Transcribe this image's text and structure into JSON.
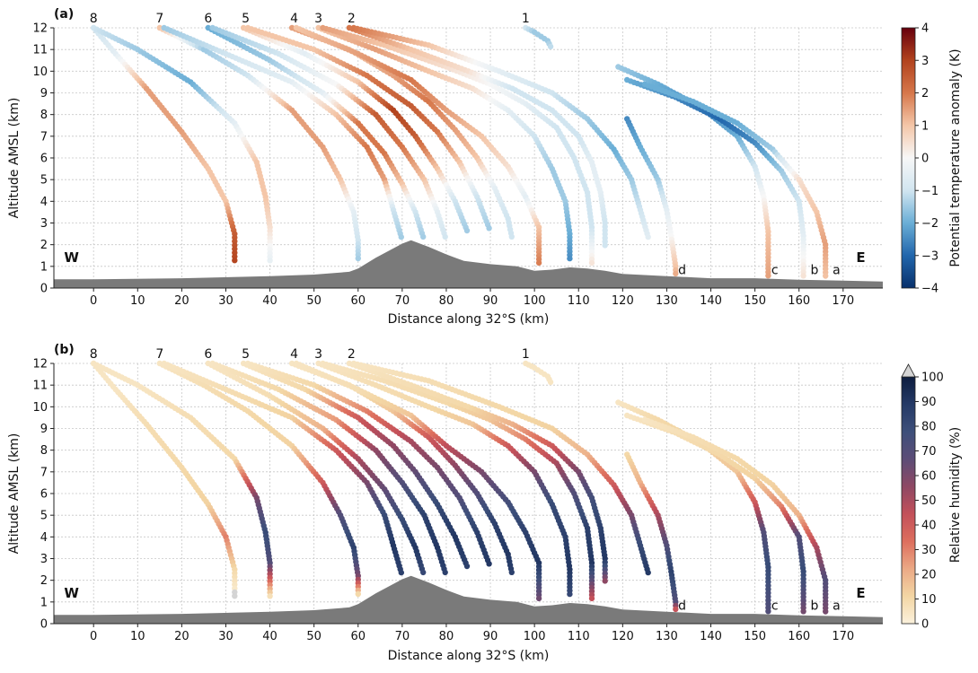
{
  "chart_data": [
    {
      "type": "scatter",
      "panel_label": "(a)",
      "xlabel": "Distance along 32°S (km)",
      "ylabel": "Altitude AMSL (km)",
      "xlim": [
        -9,
        179
      ],
      "ylim": [
        0,
        12
      ],
      "xticks": [
        "0",
        "10",
        "20",
        "30",
        "40",
        "50",
        "60",
        "70",
        "80",
        "90",
        "100",
        "110",
        "120",
        "130",
        "140",
        "150",
        "160",
        "170"
      ],
      "yticks": [
        "0",
        "1",
        "2",
        "3",
        "4",
        "5",
        "6",
        "7",
        "8",
        "9",
        "10",
        "11",
        "12"
      ],
      "grid": true,
      "side_labels": {
        "west": "W",
        "east": "E"
      },
      "colorbar": {
        "label": "Potential temperature anomaly (K)",
        "ticks": [
          "−4",
          "−3",
          "−2",
          "−1",
          "0",
          "1",
          "2",
          "3",
          "4"
        ],
        "range": [
          -4,
          4
        ],
        "colors": [
          "#08306b",
          "#2166ac",
          "#6aaed6",
          "#d1e5f0",
          "#f7f7f7",
          "#f4c6a8",
          "#d6774b",
          "#b2431e",
          "#67000d"
        ]
      },
      "launch_labels": [
        {
          "text": "8",
          "x": 0
        },
        {
          "text": "7",
          "x": 15
        },
        {
          "text": "6",
          "x": 26
        },
        {
          "text": "5",
          "x": 34.5
        },
        {
          "text": "4",
          "x": 45.5
        },
        {
          "text": "3",
          "x": 51
        },
        {
          "text": "2",
          "x": 58.5
        },
        {
          "text": "1",
          "x": 98
        }
      ],
      "station_labels": [
        {
          "text": "d",
          "x": 133.5,
          "y": 0.85
        },
        {
          "text": "c",
          "x": 154.5,
          "y": 0.85
        },
        {
          "text": "b",
          "x": 163.5,
          "y": 0.85
        },
        {
          "text": "a",
          "x": 168.5,
          "y": 0.85
        }
      ]
    },
    {
      "type": "scatter",
      "panel_label": "(b)",
      "xlabel": "Distance along 32°S (km)",
      "ylabel": "Altitude AMSL (km)",
      "xlim": [
        -9,
        179
      ],
      "ylim": [
        0,
        12
      ],
      "xticks": [
        "0",
        "10",
        "20",
        "30",
        "40",
        "50",
        "60",
        "70",
        "80",
        "90",
        "100",
        "110",
        "120",
        "130",
        "140",
        "150",
        "160",
        "170"
      ],
      "yticks": [
        "0",
        "1",
        "2",
        "3",
        "4",
        "5",
        "6",
        "7",
        "8",
        "9",
        "10",
        "11",
        "12"
      ],
      "grid": true,
      "side_labels": {
        "west": "W",
        "east": "E"
      },
      "colorbar": {
        "label": "Relative humidity (%)",
        "ticks": [
          "0",
          "10",
          "20",
          "30",
          "40",
          "50",
          "60",
          "70",
          "80",
          "90",
          "100"
        ],
        "range": [
          0,
          100
        ],
        "extend": "max",
        "colors": [
          "#fbf1dc",
          "#f3d6a4",
          "#eba985",
          "#dd6f5e",
          "#c3505a",
          "#8e4864",
          "#5c4d77",
          "#3d4f7a",
          "#253a66",
          "#0d1d3f"
        ]
      },
      "launch_labels": [
        {
          "text": "8",
          "x": 0
        },
        {
          "text": "7",
          "x": 15
        },
        {
          "text": "6",
          "x": 26
        },
        {
          "text": "5",
          "x": 34.5
        },
        {
          "text": "4",
          "x": 45.5
        },
        {
          "text": "3",
          "x": 51
        },
        {
          "text": "2",
          "x": 58.5
        },
        {
          "text": "1",
          "x": 98
        }
      ],
      "station_labels": [
        {
          "text": "d",
          "x": 133.5,
          "y": 0.85
        },
        {
          "text": "c",
          "x": 154.5,
          "y": 0.85
        },
        {
          "text": "b",
          "x": 163.5,
          "y": 0.85
        },
        {
          "text": "a",
          "x": 168.5,
          "y": 0.85
        }
      ]
    }
  ],
  "terrain": {
    "x": [
      -9,
      0,
      20,
      40,
      50,
      58,
      60,
      64,
      70,
      72,
      76,
      80,
      84,
      90,
      96,
      100,
      104,
      108,
      112,
      116,
      120,
      130,
      140,
      150,
      160,
      170,
      179
    ],
    "y": [
      0.4,
      0.4,
      0.45,
      0.55,
      0.62,
      0.75,
      0.9,
      1.4,
      2.05,
      2.2,
      1.9,
      1.55,
      1.25,
      1.1,
      1.0,
      0.8,
      0.85,
      0.95,
      0.9,
      0.8,
      0.65,
      0.55,
      0.45,
      0.45,
      0.38,
      0.34,
      0.3
    ]
  },
  "trajectories": [
    {
      "id": "8a",
      "points": [
        [
          0,
          12
        ],
        [
          5,
          10.8
        ],
        [
          12,
          9.2
        ],
        [
          20,
          7.2
        ],
        [
          26,
          5.5
        ],
        [
          30,
          4.0
        ],
        [
          32,
          2.5
        ],
        [
          32,
          1.1
        ]
      ],
      "temp": [
        -1,
        -0.5,
        1.5,
        1.5,
        1,
        1,
        2.5,
        3
      ],
      "rh": [
        5,
        5,
        8,
        10,
        12,
        30,
        10,
        0
      ]
    },
    {
      "id": "8b",
      "points": [
        [
          0,
          12
        ],
        [
          10,
          11
        ],
        [
          22,
          9.5
        ],
        [
          32,
          7.6
        ],
        [
          37,
          5.8
        ],
        [
          39,
          4.2
        ],
        [
          40,
          2.8
        ],
        [
          40,
          1.1
        ]
      ],
      "temp": [
        -1,
        -1.5,
        -2,
        -0.5,
        1,
        1,
        0.5,
        -0.5
      ],
      "rh": [
        5,
        5,
        8,
        10,
        60,
        80,
        70,
        0
      ]
    },
    {
      "id": "7a",
      "points": [
        [
          15,
          12
        ],
        [
          25,
          11
        ],
        [
          35,
          9.8
        ],
        [
          45,
          8.2
        ],
        [
          52,
          6.5
        ],
        [
          56,
          5.0
        ],
        [
          59,
          3.5
        ],
        [
          60,
          2.2
        ],
        [
          60,
          1.2
        ]
      ],
      "temp": [
        1,
        -1.5,
        -1,
        1.5,
        1.5,
        1,
        -0.5,
        -1,
        -1.5
      ],
      "rh": [
        5,
        8,
        10,
        12,
        40,
        70,
        85,
        60,
        0
      ]
    },
    {
      "id": "7b",
      "points": [
        [
          16,
          12
        ],
        [
          30,
          10.8
        ],
        [
          45,
          9.5
        ],
        [
          55,
          8.0
        ],
        [
          62,
          6.5
        ],
        [
          66,
          5.0
        ],
        [
          68,
          3.6
        ],
        [
          70,
          2.2
        ]
      ],
      "temp": [
        -1.5,
        -1,
        -0.5,
        1,
        2,
        1.5,
        -1,
        -1.5
      ],
      "rh": [
        5,
        8,
        12,
        40,
        60,
        80,
        90,
        85
      ]
    },
    {
      "id": "6a",
      "points": [
        [
          26,
          12
        ],
        [
          40,
          10.5
        ],
        [
          52,
          9.0
        ],
        [
          60,
          7.6
        ],
        [
          66,
          6.2
        ],
        [
          70,
          4.8
        ],
        [
          73,
          3.5
        ],
        [
          75,
          2.2
        ]
      ],
      "temp": [
        -2,
        -1.5,
        -0.5,
        2,
        2,
        1,
        -1,
        -1.5
      ],
      "rh": [
        5,
        8,
        20,
        50,
        65,
        80,
        90,
        80
      ]
    },
    {
      "id": "6b",
      "points": [
        [
          27,
          12
        ],
        [
          42,
          10.8
        ],
        [
          55,
          9.4
        ],
        [
          64,
          8.0
        ],
        [
          70,
          6.5
        ],
        [
          75,
          5.0
        ],
        [
          78,
          3.5
        ],
        [
          80,
          2.2
        ]
      ],
      "temp": [
        -1.5,
        -1,
        0,
        2.5,
        2,
        1,
        -0.5,
        -1
      ],
      "rh": [
        5,
        10,
        25,
        55,
        70,
        85,
        90,
        85
      ]
    },
    {
      "id": "5a",
      "points": [
        [
          34,
          12
        ],
        [
          48,
          10.8
        ],
        [
          60,
          9.5
        ],
        [
          68,
          8.2
        ],
        [
          73,
          7.0
        ],
        [
          78,
          5.5
        ],
        [
          82,
          4.0
        ],
        [
          85,
          2.5
        ]
      ],
      "temp": [
        1,
        -0.5,
        1,
        3,
        2.5,
        1,
        -1,
        -1.5
      ],
      "rh": [
        5,
        10,
        40,
        55,
        65,
        80,
        90,
        85
      ]
    },
    {
      "id": "5b",
      "points": [
        [
          35,
          12
        ],
        [
          50,
          11
        ],
        [
          62,
          9.8
        ],
        [
          72,
          8.4
        ],
        [
          78,
          7.2
        ],
        [
          83,
          5.8
        ],
        [
          87,
          4.2
        ],
        [
          90,
          2.6
        ]
      ],
      "temp": [
        1,
        1,
        2,
        2.5,
        2,
        1,
        -1,
        -1.5
      ],
      "rh": [
        5,
        10,
        30,
        50,
        60,
        70,
        85,
        90
      ]
    },
    {
      "id": "4a",
      "points": [
        [
          45,
          12
        ],
        [
          58,
          11
        ],
        [
          68,
          9.8
        ],
        [
          76,
          8.6
        ],
        [
          82,
          7.3
        ],
        [
          87,
          6.0
        ],
        [
          91,
          4.6
        ],
        [
          94,
          3.2
        ],
        [
          95,
          2.2
        ]
      ],
      "temp": [
        1.5,
        1,
        1.5,
        2,
        1.5,
        1,
        -0.5,
        -1,
        -1
      ],
      "rh": [
        5,
        8,
        15,
        40,
        55,
        70,
        85,
        90,
        85
      ]
    },
    {
      "id": "4b",
      "points": [
        [
          46,
          12
        ],
        [
          60,
          10.8
        ],
        [
          72,
          9.6
        ],
        [
          80,
          8.2
        ],
        [
          88,
          7.0
        ],
        [
          94,
          5.6
        ],
        [
          98,
          4.2
        ],
        [
          101,
          2.8
        ],
        [
          101,
          1.0
        ]
      ],
      "temp": [
        1,
        1.5,
        2,
        1.5,
        1,
        0.5,
        -0.5,
        1,
        2
      ],
      "rh": [
        5,
        8,
        15,
        45,
        60,
        75,
        85,
        90,
        60
      ]
    },
    {
      "id": "3a",
      "points": [
        [
          51,
          12
        ],
        [
          64,
          11
        ],
        [
          76,
          10
        ],
        [
          86,
          9.2
        ],
        [
          94,
          8.2
        ],
        [
          100,
          7.0
        ],
        [
          104,
          5.5
        ],
        [
          107,
          4.0
        ],
        [
          108,
          2.5
        ],
        [
          108,
          1.2
        ]
      ],
      "temp": [
        1,
        1.5,
        1,
        0.5,
        -0.5,
        -1,
        -1.5,
        -1.5,
        -2,
        -2.5
      ],
      "rh": [
        5,
        8,
        10,
        15,
        40,
        60,
        80,
        85,
        90,
        80
      ]
    },
    {
      "id": "3b",
      "points": [
        [
          52,
          12
        ],
        [
          66,
          11.2
        ],
        [
          80,
          10.2
        ],
        [
          90,
          9.4
        ],
        [
          98,
          8.5
        ],
        [
          105,
          7.4
        ],
        [
          109,
          6.0
        ],
        [
          112,
          4.4
        ],
        [
          113,
          2.8
        ],
        [
          113,
          1.0
        ]
      ],
      "temp": [
        1.5,
        1,
        0.5,
        0,
        -0.5,
        -1,
        -1,
        -1,
        -1,
        0.5
      ],
      "rh": [
        5,
        8,
        10,
        15,
        30,
        50,
        70,
        85,
        90,
        40
      ]
    },
    {
      "id": "2a",
      "points": [
        [
          58,
          12
        ],
        [
          72,
          11
        ],
        [
          85,
          10
        ],
        [
          95,
          9.2
        ],
        [
          104,
          8.2
        ],
        [
          110,
          7.0
        ],
        [
          113,
          5.8
        ],
        [
          115,
          4.4
        ],
        [
          116,
          3.0
        ],
        [
          116,
          1.8
        ]
      ],
      "temp": [
        2,
        1,
        0.5,
        -1,
        -1,
        -1,
        -0.5,
        -0.5,
        -1,
        -1
      ],
      "rh": [
        5,
        8,
        10,
        20,
        40,
        60,
        75,
        85,
        90,
        50
      ]
    },
    {
      "id": "2b",
      "points": [
        [
          59,
          12
        ],
        [
          76,
          11.2
        ],
        [
          92,
          10.0
        ],
        [
          104,
          9.0
        ],
        [
          112,
          7.8
        ],
        [
          118,
          6.4
        ],
        [
          122,
          5.0
        ],
        [
          124,
          3.6
        ],
        [
          126,
          2.2
        ]
      ],
      "temp": [
        2,
        1,
        -0.5,
        -1,
        -1.5,
        -2,
        -1.5,
        -1,
        -0.5
      ],
      "rh": [
        5,
        8,
        10,
        12,
        20,
        40,
        60,
        80,
        90
      ]
    },
    {
      "id": "1a",
      "points": [
        [
          98,
          12
        ],
        [
          100,
          11.8
        ],
        [
          103,
          11.4
        ],
        [
          104,
          11.0
        ]
      ],
      "temp": [
        -1,
        -1.5,
        -1.5,
        -1
      ],
      "rh": [
        5,
        5,
        5,
        5
      ]
    },
    {
      "id": "d1",
      "points": [
        [
          121,
          7.8
        ],
        [
          124,
          6.5
        ],
        [
          128,
          5.0
        ],
        [
          130,
          3.6
        ],
        [
          131,
          2.4
        ],
        [
          132,
          1.0
        ],
        [
          132,
          0.5
        ]
      ],
      "temp": [
        -2.5,
        -2,
        -1.5,
        -0.5,
        0,
        1,
        1.5
      ],
      "rh": [
        10,
        20,
        50,
        70,
        85,
        70,
        30
      ]
    },
    {
      "id": "c1",
      "points": [
        [
          119,
          10.2
        ],
        [
          128,
          9.4
        ],
        [
          138,
          8.3
        ],
        [
          146,
          7.0
        ],
        [
          150,
          5.6
        ],
        [
          152,
          4.2
        ],
        [
          153,
          2.6
        ],
        [
          153,
          0.4
        ]
      ],
      "temp": [
        -1.5,
        -2,
        -2.5,
        -2,
        -1,
        0,
        1,
        1.5
      ],
      "rh": [
        5,
        10,
        12,
        15,
        40,
        70,
        80,
        70
      ]
    },
    {
      "id": "b1",
      "points": [
        [
          121,
          9.6
        ],
        [
          132,
          8.8
        ],
        [
          142,
          7.8
        ],
        [
          150,
          6.7
        ],
        [
          156,
          5.4
        ],
        [
          160,
          4.0
        ],
        [
          161,
          2.4
        ],
        [
          161,
          0.4
        ]
      ],
      "temp": [
        -2,
        -2.5,
        -3,
        -2.5,
        -1.5,
        -1,
        -0.5,
        0.5
      ],
      "rh": [
        5,
        8,
        10,
        12,
        30,
        70,
        80,
        60
      ]
    },
    {
      "id": "a1",
      "points": [
        [
          125,
          9.4
        ],
        [
          136,
          8.6
        ],
        [
          146,
          7.6
        ],
        [
          154,
          6.4
        ],
        [
          160,
          5.0
        ],
        [
          164,
          3.5
        ],
        [
          166,
          2.0
        ],
        [
          166,
          0.4
        ]
      ],
      "temp": [
        -2,
        -2,
        -2,
        -1.5,
        0.5,
        1,
        1.5,
        1
      ],
      "rh": [
        5,
        8,
        10,
        12,
        20,
        50,
        70,
        60
      ]
    }
  ]
}
